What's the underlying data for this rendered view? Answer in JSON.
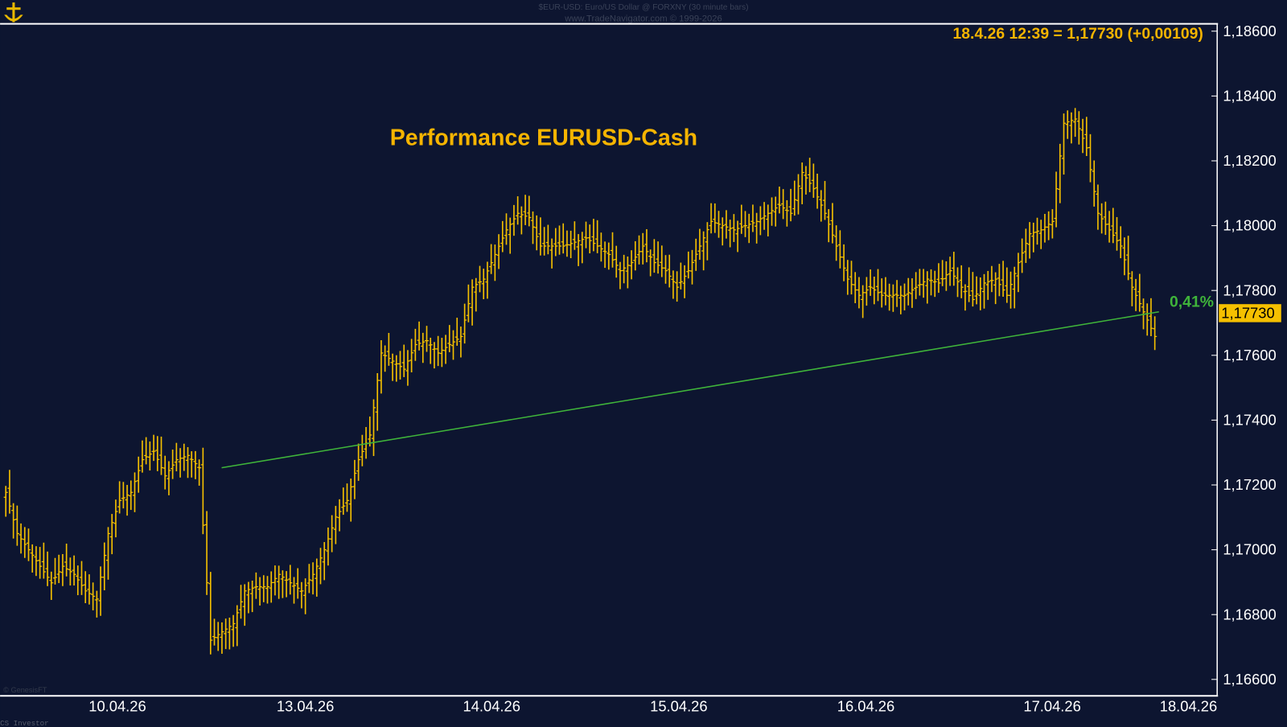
{
  "header": {
    "symbol_line": "$EUR-USD:  Euro/US Dollar @ FORXNY  (30 minute bars)",
    "copyright_line": "www.TradeNavigator.com © 1999-2026",
    "last_quote": "18.4.26 12:39 = 1,17730 (+0,00109)"
  },
  "footer": {
    "genesis": "© GenesisFT",
    "brand": "CS Investor"
  },
  "colors": {
    "background": "#0d1530",
    "bars": "#f5c000",
    "title": "#f5b400",
    "trendline": "#3fb43a",
    "axis_text": "#ffffff"
  },
  "chart_data": {
    "type": "bar",
    "subtype": "ohlc",
    "title": "Performance EURUSD-Cash",
    "ylim": [
      1.166,
      1.186
    ],
    "yticks": [
      "1,16600",
      "1,16800",
      "1,17000",
      "1,17200",
      "1,17400",
      "1,17600",
      "1,17800",
      "1,18000",
      "1,18200",
      "1,18400",
      "1,18600"
    ],
    "xticks": [
      "10.04.26",
      "13.04.26",
      "14.04.26",
      "15.04.26",
      "16.04.26",
      "17.04.26",
      "18.04.26"
    ],
    "grid": false,
    "y_axis_side": "right",
    "last_price_label": "1,17730",
    "close_path": [
      1.17177,
      1.1705,
      1.17,
      1.16949,
      1.16898,
      1.16949,
      1.16924,
      1.16873,
      1.16848,
      1.1705,
      1.17152,
      1.17177,
      1.17278,
      1.17304,
      1.17228,
      1.17278,
      1.17291,
      1.17253,
      1.16721,
      1.16747,
      1.16772,
      1.16873,
      1.16886,
      1.16886,
      1.16924,
      1.16898,
      1.16873,
      1.16924,
      1.17,
      1.17101,
      1.17152,
      1.17278,
      1.17354,
      1.17607,
      1.17582,
      1.17557,
      1.17633,
      1.17645,
      1.17607,
      1.17633,
      1.17658,
      1.1781,
      1.17835,
      1.17911,
      1.17987,
      1.18038,
      1.18025,
      1.17937,
      1.17937,
      1.17937,
      1.17949,
      1.17962,
      1.17937,
      1.17911,
      1.17861,
      1.17886,
      1.17937,
      1.17886,
      1.17861,
      1.1781,
      1.17861,
      1.17937,
      1.18013,
      1.18,
      1.17987,
      1.18,
      1.18013,
      1.18038,
      1.18063,
      1.18038,
      1.18164,
      1.18114,
      1.18038,
      1.17937,
      1.17835,
      1.17785,
      1.1781,
      1.17785,
      1.17785,
      1.17785,
      1.1781,
      1.17835,
      1.17823,
      1.17861,
      1.1781,
      1.17772,
      1.17823,
      1.17835,
      1.17785,
      1.17886,
      1.17975,
      1.17987,
      1.18013,
      1.18316,
      1.18329,
      1.1824,
      1.18038,
      1.17987,
      1.17937,
      1.1781,
      1.17734,
      1.17658
    ],
    "performance_line": {
      "start_price": 1.17253,
      "end_price": 1.17734,
      "label": "0,41%"
    }
  }
}
